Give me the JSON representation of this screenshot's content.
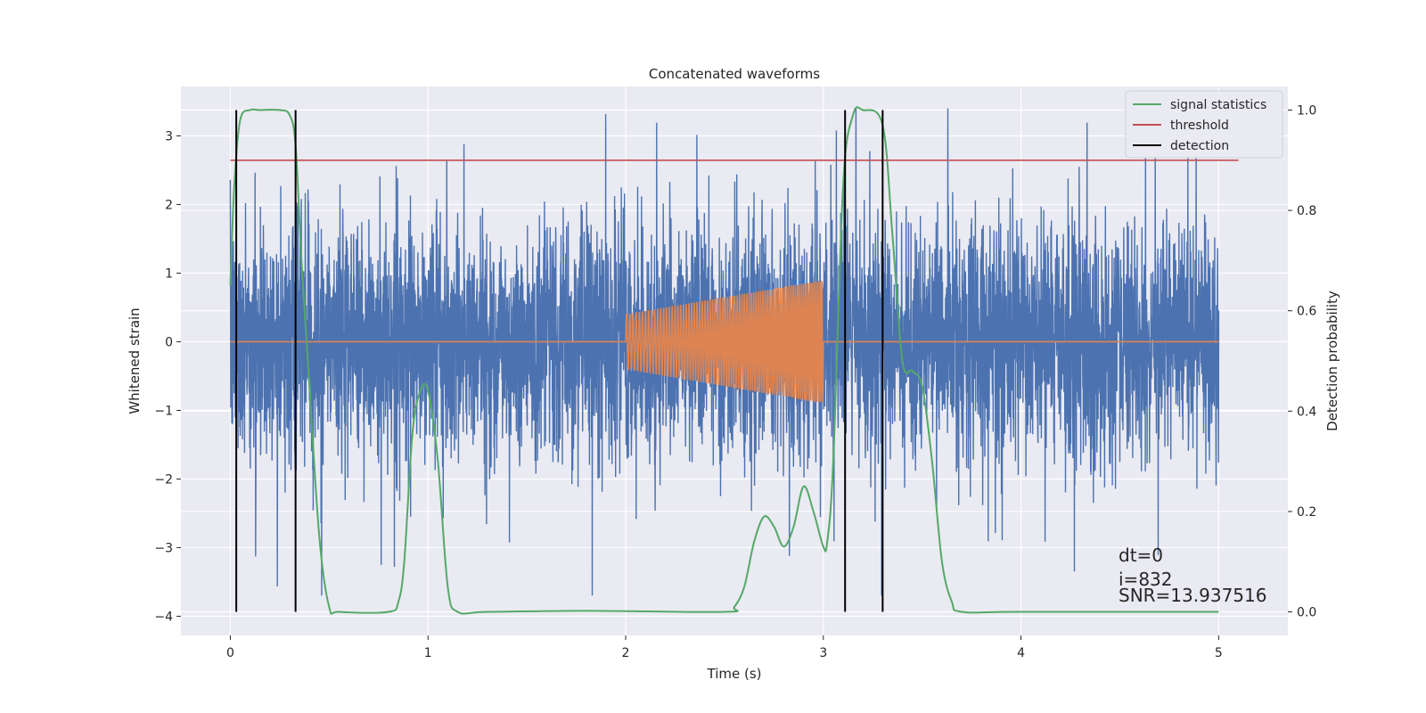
{
  "chart_data": {
    "type": "line",
    "title": "Concatenated waveforms",
    "xlabel": "Time (s)",
    "ylabel": "Whitened strain",
    "ylabel_right": "Detection probability",
    "xlim": [
      -0.25,
      5.35
    ],
    "ylim": [
      -4.28,
      3.72
    ],
    "ylim_right": [
      -0.047,
      1.047
    ],
    "x_ticks": [
      0,
      1,
      2,
      3,
      4,
      5
    ],
    "y_ticks": [
      -4,
      -3,
      -2,
      -1,
      0,
      1,
      2,
      3
    ],
    "y_ticks_right": [
      0.0,
      0.2,
      0.4,
      0.6,
      0.8,
      1.0
    ],
    "x_tick_labels": [
      "0",
      "1",
      "2",
      "3",
      "4",
      "5"
    ],
    "y_tick_labels": [
      "−4",
      "−3",
      "−2",
      "−1",
      "0",
      "1",
      "2",
      "3"
    ],
    "y_tick_labels_right": [
      "0.0",
      "0.2",
      "0.4",
      "0.6",
      "0.8",
      "1.0"
    ],
    "grid": true,
    "legend_position": "top-right",
    "colors": {
      "strain": "#4c72b0",
      "injection": "#dd8452",
      "signal_statistics": "#55a868",
      "threshold": "#c44e52",
      "detection": "#000000",
      "background": "#eaeaf2",
      "grid": "#ffffff"
    },
    "series": [
      {
        "name": "whitened strain",
        "style": "noise",
        "x_range": [
          0,
          5
        ],
        "amplitude_range": [
          -3.7,
          3.4
        ]
      },
      {
        "name": "injected waveform",
        "style": "chirp",
        "x_range": [
          2,
          3
        ],
        "envelope_start": 0.4,
        "envelope_end": 0.9
      },
      {
        "name": "signal statistics",
        "axis": "right",
        "x": [
          0.0,
          0.02,
          0.05,
          0.1,
          0.15,
          0.25,
          0.3,
          0.33,
          0.36,
          0.4,
          0.45,
          0.5,
          0.55,
          0.8,
          0.85,
          0.88,
          0.92,
          0.96,
          1.0,
          1.05,
          1.1,
          1.15,
          1.3,
          1.8,
          2.5,
          2.55,
          2.6,
          2.65,
          2.7,
          2.75,
          2.8,
          2.85,
          2.9,
          2.95,
          3.0,
          3.02,
          3.05,
          3.1,
          3.15,
          3.2,
          3.3,
          3.35,
          3.4,
          3.45,
          3.5,
          3.55,
          3.6,
          3.65,
          3.7,
          4.0,
          5.0
        ],
        "values": [
          0.65,
          0.85,
          0.98,
          1.0,
          1.0,
          1.0,
          0.99,
          0.93,
          0.7,
          0.45,
          0.15,
          0.01,
          0.0,
          0.0,
          0.02,
          0.1,
          0.35,
          0.44,
          0.44,
          0.3,
          0.05,
          0.0,
          0.0,
          0.002,
          0.0,
          0.01,
          0.05,
          0.14,
          0.19,
          0.17,
          0.13,
          0.17,
          0.25,
          0.2,
          0.13,
          0.14,
          0.3,
          0.85,
          0.99,
          1.0,
          0.97,
          0.75,
          0.5,
          0.48,
          0.45,
          0.3,
          0.1,
          0.02,
          0.0,
          0.0,
          0.0
        ]
      },
      {
        "name": "threshold",
        "axis": "right",
        "x": [
          0,
          5.1
        ],
        "values": [
          0.9,
          0.9
        ]
      },
      {
        "name": "detection",
        "style": "vlines",
        "x": [
          0.03,
          0.33,
          3.11,
          3.3
        ]
      }
    ],
    "legend": [
      "signal statistics",
      "threshold",
      "detection"
    ],
    "annotations": [
      "dt=0",
      "i=832",
      "SNR=13.937516"
    ]
  }
}
